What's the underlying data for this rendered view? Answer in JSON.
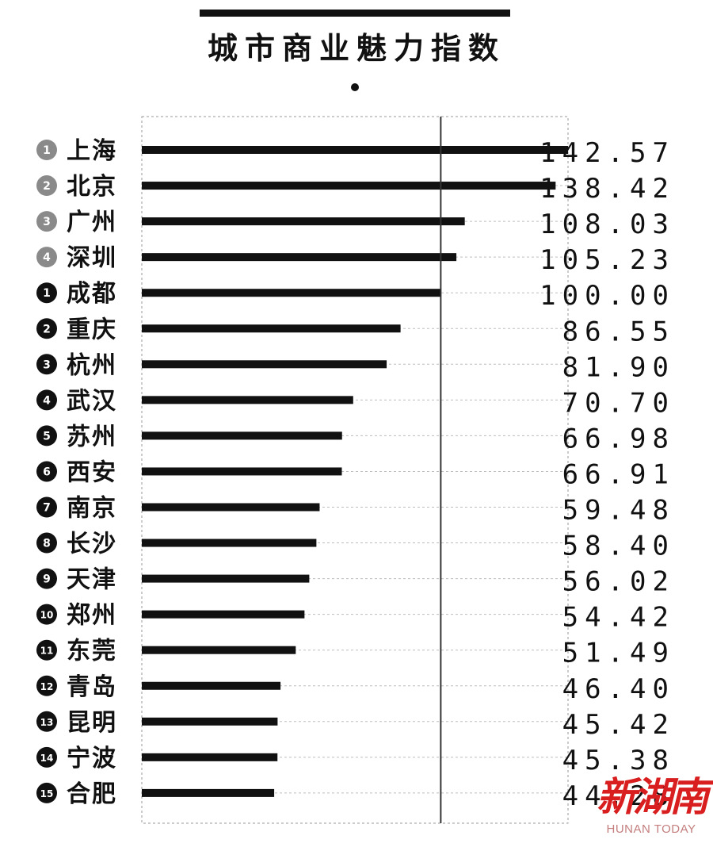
{
  "chart_data": {
    "type": "bar",
    "orientation": "horizontal",
    "title": "城市商业魅力指数",
    "xlim": [
      0,
      142.57
    ],
    "reference_line": 100.0,
    "grid": "dashed horizontal guides",
    "categories": [
      "上海",
      "北京",
      "广州",
      "深圳",
      "成都",
      "重庆",
      "杭州",
      "武汉",
      "苏州",
      "西安",
      "南京",
      "长沙",
      "天津",
      "郑州",
      "东莞",
      "青岛",
      "昆明",
      "宁波",
      "合肥"
    ],
    "ranks": [
      "1",
      "2",
      "3",
      "4",
      "1",
      "2",
      "3",
      "4",
      "5",
      "6",
      "7",
      "8",
      "9",
      "10",
      "11",
      "12",
      "13",
      "14",
      "15"
    ],
    "rank_styles": [
      "grey",
      "grey",
      "grey",
      "grey",
      "black",
      "black",
      "black",
      "black",
      "black",
      "black",
      "black",
      "black",
      "black",
      "black",
      "black",
      "black",
      "black",
      "black",
      "black"
    ],
    "values": [
      142.57,
      138.42,
      108.03,
      105.23,
      100.0,
      86.55,
      81.9,
      70.7,
      66.98,
      66.91,
      59.48,
      58.4,
      56.02,
      54.42,
      51.49,
      46.4,
      45.42,
      45.38,
      44.28
    ],
    "value_labels": [
      "142.57",
      "138.42",
      "108.03",
      "105.23",
      "100.00",
      "86.55",
      "81.90",
      "70.70",
      "66.98",
      "66.91",
      "59.48",
      "58.40",
      "56.02",
      "54.42",
      "51.49",
      "46.40",
      "45.42",
      "45.38",
      "44.28"
    ]
  },
  "watermark": {
    "cn": "新湖南",
    "en": "HUNAN TODAY"
  },
  "colors": {
    "bar": "#111111",
    "rank_grey": "#8a8a8a",
    "rank_black": "#111111",
    "guide": "#bdbdbd",
    "frame": "#9a9a9a",
    "reference": "#333333",
    "watermark": "#d81e1e"
  }
}
